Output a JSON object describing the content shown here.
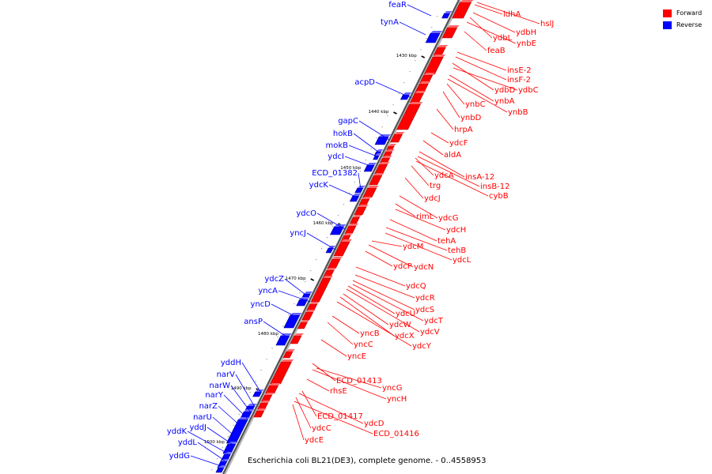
{
  "legend": {
    "forward_label": "Forward",
    "reverse_label": "Reverse",
    "forward_color": "#ff0000",
    "reverse_color": "#0000ff"
  },
  "caption": "Escherichia coli BL21(DE3), complete genome. - 0..4558953",
  "ticks": [
    "1430 kbp",
    "1440 kbp",
    "1450 kbp",
    "1460 kbp",
    "1470 kbp",
    "1480 kbp",
    "1490 kbp",
    "1500 kbp"
  ],
  "forward_genes": [
    "ldhA",
    "hslJ",
    "ydbH",
    "ydbL",
    "ynbE",
    "feaB",
    "insE-2",
    "insF-2",
    "ydbD",
    "ydbC",
    "ynbA",
    "ynbC",
    "ynbB",
    "ynbD",
    "hrpA",
    "ydcF",
    "aldA",
    "ydcA",
    "insA-12",
    "insB-12",
    "cybB",
    "trg",
    "ydcJ",
    "rimL",
    "ydcG",
    "ydcH",
    "tehA",
    "tehB",
    "ydcL",
    "ydcM",
    "ydcP",
    "ydcN",
    "ydcQ",
    "ydcR",
    "ydcS",
    "ydcT",
    "ydcU",
    "ydcV",
    "ydcW",
    "ydcX",
    "ydcY",
    "yncB",
    "yncC",
    "yncE",
    "ECD_01413",
    "yncG",
    "rhsE",
    "yncH",
    "ECD_01417",
    "ydcD",
    "ydcC",
    "ECD_01416",
    "ydcE"
  ],
  "reverse_genes": [
    "feaR",
    "tynA",
    "acpD",
    "gapC",
    "hokB",
    "mokB",
    "ydcI",
    "ECD_01382",
    "ydcK",
    "ydcO",
    "yncJ",
    "ydcZ",
    "yncA",
    "yncD",
    "ansP",
    "yddH",
    "narV",
    "narW",
    "narY",
    "narZ",
    "narU",
    "yddJ",
    "yddK",
    "yddL",
    "yddG"
  ]
}
